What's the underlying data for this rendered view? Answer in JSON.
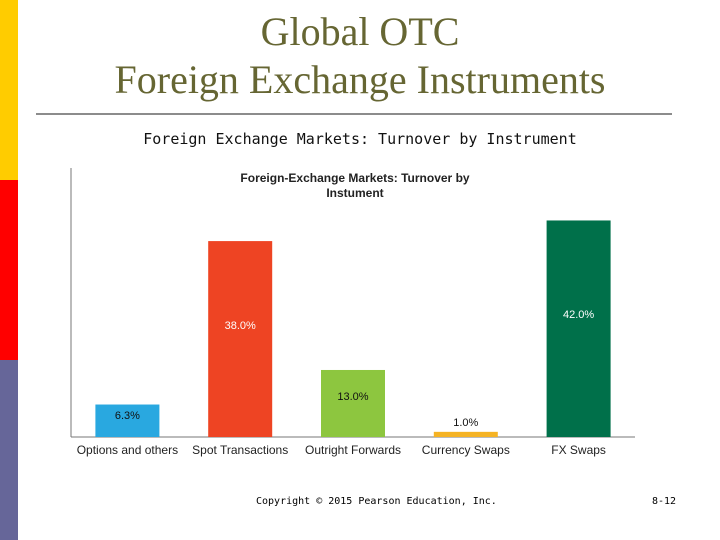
{
  "slide": {
    "title_line1": "Global OTC",
    "title_line2": "Foreign Exchange Instruments",
    "subtitle": "Foreign Exchange Markets: Turnover by Instrument",
    "copyright": "Copyright © 2015 Pearson Education, Inc.",
    "slide_number": "8-12"
  },
  "chart_data": {
    "type": "bar",
    "title_line1": "Foreign-Exchange Markets: Turnover by",
    "title_line2": "Instument",
    "categories": [
      "Options and others",
      "Spot Transactions",
      "Outright Forwards",
      "Currency Swaps",
      "FX Swaps"
    ],
    "values": [
      6.3,
      38.0,
      13.0,
      1.0,
      42.0
    ],
    "value_labels": [
      "6.3%",
      "38.0%",
      "13.0%",
      "1.0%",
      "42.0%"
    ],
    "colors": [
      "#29a8e0",
      "#ee4423",
      "#8dc63f",
      "#f5b324",
      "#00704a"
    ],
    "ylim": [
      0,
      45
    ],
    "grid": false,
    "legend": "none"
  }
}
